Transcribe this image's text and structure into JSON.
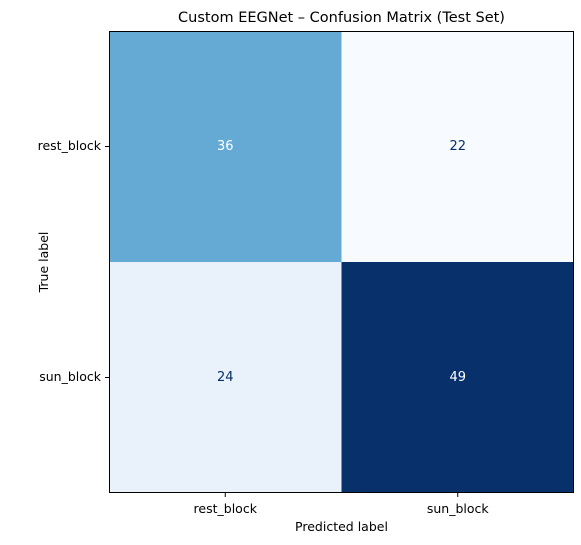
{
  "chart_data": {
    "type": "heatmap",
    "title": "Custom EEGNet – Confusion Matrix (Test Set)",
    "xlabel": "Predicted label",
    "ylabel": "True label",
    "x_categories": [
      "rest_block",
      "sun_block"
    ],
    "y_categories": [
      "rest_block",
      "sun_block"
    ],
    "values": [
      [
        36,
        22
      ],
      [
        24,
        49
      ]
    ],
    "colormap": "Blues",
    "cell_colors": [
      [
        "#65aad4",
        "#f7fbff"
      ],
      [
        "#e9f1fa",
        "#08306b"
      ]
    ],
    "text_colors": [
      [
        "#ffffff",
        "#08306b"
      ],
      [
        "#08306b",
        "#ffffff"
      ]
    ],
    "colorbar": false,
    "grid": false
  }
}
